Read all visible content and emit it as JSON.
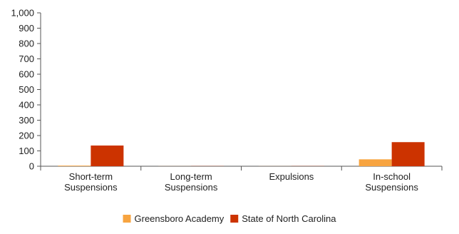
{
  "chart_data": {
    "type": "bar",
    "categories": [
      [
        "Short-term",
        "Suspensions"
      ],
      [
        "Long-term",
        "Suspensions"
      ],
      [
        "Expulsions"
      ],
      [
        "In-school",
        "Suspensions"
      ]
    ],
    "series": [
      {
        "name": "Greensboro Academy",
        "color": "#f7a440",
        "values": [
          4,
          0.5,
          0.5,
          45
        ]
      },
      {
        "name": "State of North Carolina",
        "color": "#cc3300",
        "values": [
          135,
          1,
          1,
          157
        ]
      }
    ],
    "y_ticks": [
      "0",
      "100",
      "200",
      "300",
      "400",
      "500",
      "600",
      "700",
      "800",
      "900",
      "1,000"
    ],
    "ylim": [
      0,
      1000
    ],
    "legend_position": "bottom",
    "grid": false
  }
}
